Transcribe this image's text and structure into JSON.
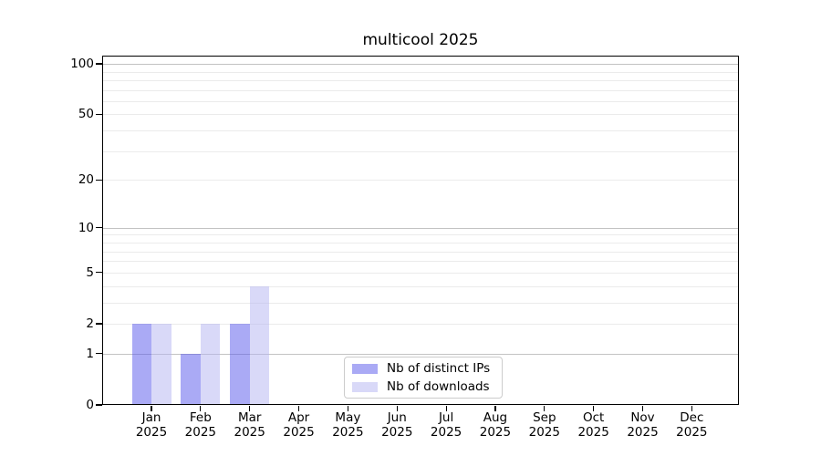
{
  "chart_data": {
    "type": "bar",
    "title": "multicool 2025",
    "categories": [
      "Jan",
      "Feb",
      "Mar",
      "Apr",
      "May",
      "Jun",
      "Jul",
      "Aug",
      "Sep",
      "Oct",
      "Nov",
      "Dec"
    ],
    "x_year": "2025",
    "series": [
      {
        "name": "Nb of distinct IPs",
        "values": [
          2,
          1,
          2,
          0,
          0,
          0,
          0,
          0,
          0,
          0,
          0,
          0
        ],
        "color": "rgba(85, 85, 235, 0.5)",
        "legend_color": "#aaaaf5"
      },
      {
        "name": "Nb of downloads",
        "values": [
          2,
          2,
          4,
          0,
          0,
          0,
          0,
          0,
          0,
          0,
          0,
          0
        ],
        "color": "rgba(180, 180, 242, 0.5)",
        "legend_color": "#d9d9f8"
      }
    ],
    "xlabel": "",
    "ylabel": "",
    "yscale": "log1p",
    "ylim": [
      0,
      112
    ],
    "y_ticks": [
      0,
      1,
      2,
      5,
      10,
      20,
      50,
      100
    ],
    "y_gridlines_major": [
      1,
      10,
      100
    ],
    "y_gridlines_minor": [
      2,
      3,
      4,
      5,
      6,
      7,
      8,
      9,
      20,
      30,
      40,
      50,
      60,
      70,
      80,
      90
    ],
    "grid": true,
    "legend_position": "lower center"
  },
  "colors": {
    "background": "#ffffff",
    "spine": "#000000",
    "grid_major": "#c3c3c3",
    "grid_minor": "#ebebeb",
    "text": "#000000",
    "legend_border": "#cccccc"
  }
}
